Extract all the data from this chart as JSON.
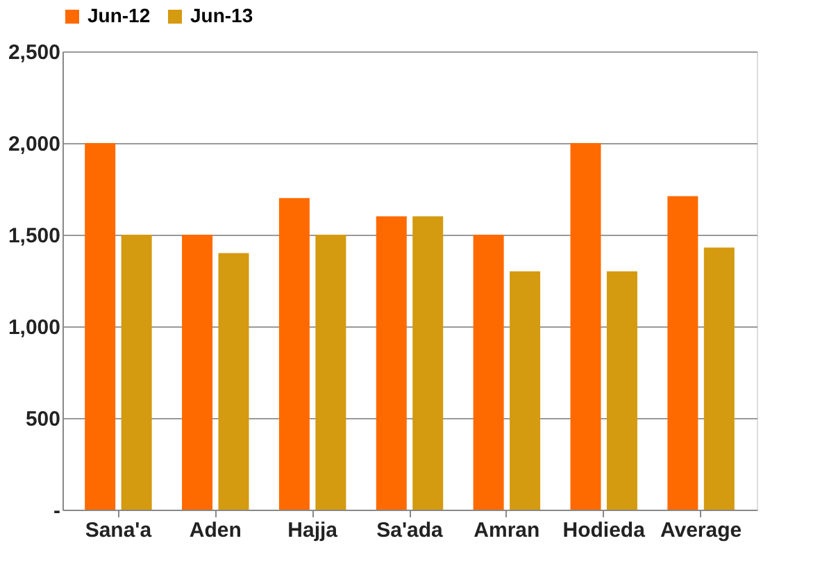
{
  "chart_data": {
    "type": "bar",
    "categories": [
      "Sana'a",
      "Aden",
      "Hajja",
      "Sa'ada",
      "Amran",
      "Hodieda",
      "Average"
    ],
    "series": [
      {
        "name": "Jun-12",
        "color": "#ff6a00",
        "values": [
          2000,
          1500,
          1700,
          1600,
          1500,
          2000,
          1710
        ]
      },
      {
        "name": "Jun-13",
        "color": "#d49a10",
        "values": [
          1500,
          1400,
          1500,
          1600,
          1300,
          1300,
          1430
        ]
      }
    ],
    "ylim": [
      0,
      2500
    ],
    "yticks": [
      {
        "value": 0,
        "label": "-"
      },
      {
        "value": 500,
        "label": "500"
      },
      {
        "value": 1000,
        "label": "1,000"
      },
      {
        "value": 1500,
        "label": "1,500"
      },
      {
        "value": 2000,
        "label": "2,000"
      },
      {
        "value": 2500,
        "label": "2,500"
      }
    ],
    "grid": "y",
    "legend": "top"
  }
}
